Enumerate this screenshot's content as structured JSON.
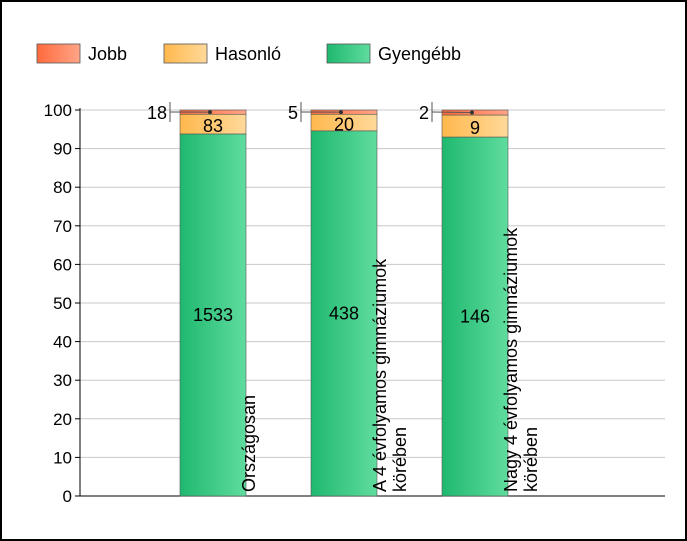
{
  "chart_data": {
    "type": "bar",
    "stacked": true,
    "percent": true,
    "title": "",
    "xlabel": "",
    "ylabel": "",
    "ylim": [
      0,
      100
    ],
    "yticks": [
      0,
      10,
      20,
      30,
      40,
      50,
      60,
      70,
      80,
      90,
      100
    ],
    "grid": true,
    "legend_position": "top",
    "categories": [
      [
        "Országosan"
      ],
      [
        "A 4 évfolyamos gimnáziumok",
        "körében"
      ],
      [
        "Nagy 4 évfolyamos gimnáziumok",
        "körében"
      ]
    ],
    "series": [
      {
        "name": "Gyengébb",
        "color": "#2ebf7a",
        "counts": [
          1533,
          438,
          146
        ],
        "values": [
          93.8,
          94.6,
          93.0
        ]
      },
      {
        "name": "Hasonló",
        "color": "#ffc773",
        "counts": [
          83,
          20,
          9
        ],
        "values": [
          5.1,
          4.3,
          5.7
        ]
      },
      {
        "name": "Jobb",
        "color": "#ff7a50",
        "counts": [
          18,
          5,
          2
        ],
        "values": [
          1.1,
          1.1,
          1.3
        ]
      }
    ],
    "legend": [
      "Jobb",
      "Hasonló",
      "Gyengébb"
    ]
  }
}
